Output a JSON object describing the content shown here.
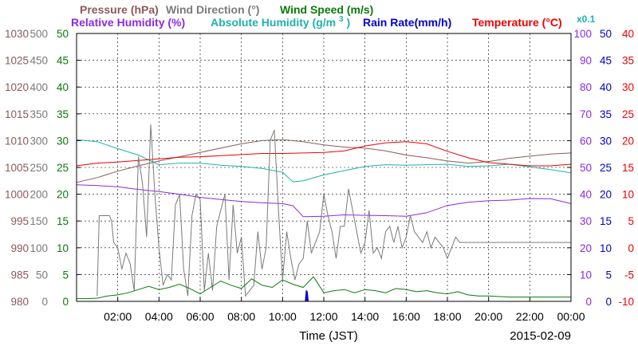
{
  "chart_data": {
    "type": "line",
    "legend": {
      "row1": [
        {
          "text": "Pressure (hPa)",
          "color": "#8b5a5a"
        },
        {
          "text": "Wind Direction (°)",
          "color": "#7a7a7a"
        },
        {
          "text": "Wind Speed (m/s)",
          "color": "#0a7a0a"
        }
      ],
      "row2": [
        {
          "text": "Relative Humidity (%)",
          "color": "#8a2be2"
        },
        {
          "text": "Absolute Humidity (g/m",
          "sup": "3",
          "tail": ")",
          "color": "#20b2aa"
        },
        {
          "text": "Rain Rate(mm/h)",
          "color": "#0000cc"
        },
        {
          "text": "Temperature (°C)",
          "color": "#ee0000"
        },
        {
          "text": "x0.1",
          "color": "#20b2aa"
        }
      ]
    },
    "xlabel": "Time (JST)",
    "date": "2015-02-09",
    "x_ticks": [
      "02:00",
      "04:00",
      "06:00",
      "08:00",
      "10:00",
      "12:00",
      "14:00",
      "16:00",
      "18:00",
      "20:00",
      "22:00",
      "00:00"
    ],
    "axes": {
      "pressure": {
        "color": "#8b5a5a",
        "ticks": [
          "980",
          "985",
          "990",
          "995",
          "1000",
          "1005",
          "1010",
          "1015",
          "1020",
          "1025",
          "1030"
        ]
      },
      "wind_dir": {
        "color": "#7a7a7a",
        "ticks": [
          "0",
          "50",
          "100",
          "150",
          "200",
          "250",
          "300",
          "350",
          "400",
          "450",
          "500"
        ]
      },
      "wind_speed": {
        "color": "#0a7a0a",
        "ticks": [
          "0",
          "5",
          "10",
          "15",
          "20",
          "25",
          "30",
          "35",
          "40",
          "45",
          "50"
        ]
      },
      "humidity": {
        "color": "#8a2be2",
        "ticks": [
          "0",
          "10",
          "20",
          "30",
          "40",
          "50",
          "60",
          "70",
          "80",
          "90",
          "100"
        ]
      },
      "rain_rate": {
        "color": "#0000cc",
        "ticks": [
          "0",
          "5",
          "10",
          "15",
          "20",
          "25",
          "30",
          "35",
          "40",
          "45",
          "50"
        ]
      },
      "temperature": {
        "color": "#ee0000",
        "ticks": [
          "-10",
          "-5",
          "0",
          "5",
          "10",
          "15",
          "20",
          "25",
          "30",
          "35",
          "40"
        ]
      }
    },
    "series": [
      {
        "name": "Pressure (hPa)",
        "axis": "pressure",
        "color": "#8b5a5a",
        "x": [
          0,
          1,
          2,
          3,
          4,
          5,
          6,
          7,
          8,
          9,
          10,
          11,
          12,
          13,
          14,
          15,
          16,
          17,
          18,
          19,
          20,
          21,
          22,
          23,
          24
        ],
        "y": [
          1002.2,
          1003.1,
          1004.3,
          1005.3,
          1006.2,
          1007.0,
          1007.8,
          1008.6,
          1009.4,
          1010.0,
          1010.2,
          1009.8,
          1009.2,
          1008.8,
          1008.6,
          1008.1,
          1007.3,
          1006.8,
          1006.2,
          1005.8,
          1006.1,
          1006.7,
          1007.1,
          1007.5,
          1007.7
        ]
      },
      {
        "name": "Relative Humidity (%)",
        "axis": "humidity",
        "color": "#8a2be2",
        "x": [
          0,
          1,
          2,
          3,
          4,
          5,
          6,
          7,
          8,
          9,
          10,
          10.5,
          11,
          12,
          13,
          14,
          15,
          16,
          17,
          18,
          19,
          20,
          21,
          22,
          23,
          24
        ],
        "y": [
          43.5,
          43.2,
          42.8,
          41.8,
          41.0,
          40.0,
          38.8,
          38.0,
          37.3,
          36.8,
          36.5,
          35.7,
          31.6,
          31.8,
          32.3,
          32.1,
          32.0,
          31.8,
          33.1,
          35.8,
          37.0,
          37.6,
          37.8,
          38.4,
          38.3,
          36.5
        ]
      },
      {
        "name": "Absolute Humidity (g/m³) x0.1",
        "axis": "wind_speed",
        "color": "#20b2aa",
        "x": [
          0,
          1,
          2,
          3,
          4,
          5,
          6,
          7,
          8,
          9,
          10,
          10.5,
          11,
          12,
          13,
          14,
          15,
          16,
          17,
          18,
          19,
          20,
          21,
          22,
          23,
          24
        ],
        "y": [
          30.2,
          29.8,
          28.5,
          27.3,
          25.5,
          25.8,
          25.8,
          25.4,
          25.2,
          24.8,
          24.1,
          22.3,
          22.5,
          23.6,
          24.4,
          25.2,
          25.5,
          25.4,
          25.5,
          25.6,
          25.2,
          25.3,
          25.6,
          25.1,
          24.6,
          24.0
        ]
      },
      {
        "name": "Temperature (°C)",
        "axis": "temperature",
        "color": "#ee0000",
        "x": [
          0,
          1,
          2,
          3,
          4,
          5,
          6,
          7,
          8,
          9,
          10,
          11,
          12,
          13,
          14,
          15,
          16,
          17,
          18,
          19,
          20,
          21,
          22,
          23,
          24
        ],
        "y": [
          15.3,
          15.8,
          16.0,
          16.3,
          16.6,
          16.9,
          17.0,
          17.2,
          17.4,
          17.6,
          17.6,
          17.7,
          17.8,
          18.1,
          19.0,
          19.6,
          19.8,
          19.4,
          18.0,
          16.8,
          15.9,
          15.6,
          15.3,
          15.3,
          15.6
        ]
      },
      {
        "name": "Wind Direction (°)",
        "axis": "wind_dir",
        "color": "#7a7a7a",
        "x": [
          1.0,
          1.1,
          1.6,
          1.7,
          1.8,
          2.0,
          2.2,
          2.4,
          2.6,
          2.8,
          3.0,
          3.2,
          3.4,
          3.6,
          3.8,
          4.0,
          4.2,
          4.4,
          4.6,
          4.8,
          5.0,
          5.2,
          5.4,
          5.6,
          5.8,
          6.0,
          6.2,
          6.4,
          6.6,
          6.8,
          7.0,
          7.2,
          7.4,
          7.6,
          7.8,
          8.0,
          8.2,
          8.4,
          8.6,
          8.8,
          9.0,
          9.2,
          9.4,
          9.6,
          9.8,
          10.0,
          10.2,
          10.4,
          10.6,
          10.8,
          11.0,
          11.2,
          11.4,
          11.6,
          11.8,
          12.0,
          12.2,
          12.4,
          12.6,
          12.8,
          13.0,
          13.2,
          13.4,
          13.6,
          13.8,
          14.0,
          14.2,
          14.4,
          14.6,
          14.8,
          15.0,
          15.2,
          15.4,
          15.6,
          15.8,
          16.0,
          16.2,
          16.4,
          16.6,
          16.8,
          17.0,
          17.2,
          17.4,
          17.6,
          17.8,
          18.0,
          18.2,
          18.4,
          18.6,
          19.0,
          20.0,
          21.0,
          22.0,
          23.0,
          24.0
        ],
        "y": [
          10,
          160,
          160,
          150,
          110,
          100,
          60,
          90,
          70,
          20,
          270,
          220,
          120,
          330,
          200,
          100,
          30,
          50,
          40,
          180,
          200,
          60,
          10,
          160,
          200,
          190,
          20,
          90,
          20,
          140,
          170,
          200,
          40,
          180,
          90,
          120,
          10,
          20,
          30,
          130,
          60,
          100,
          300,
          320,
          170,
          40,
          130,
          80,
          40,
          70,
          80,
          150,
          90,
          110,
          130,
          200,
          160,
          130,
          80,
          140,
          140,
          210,
          170,
          130,
          90,
          110,
          170,
          90,
          100,
          80,
          130,
          140,
          110,
          140,
          100,
          120,
          160,
          130,
          120,
          110,
          130,
          100,
          120,
          110,
          100,
          80,
          100,
          120,
          110,
          110,
          110,
          110,
          110,
          110,
          110
        ]
      },
      {
        "name": "Wind Speed (m/s)",
        "axis": "wind_speed",
        "color": "#0a7a0a",
        "x": [
          0,
          0.5,
          1.0,
          1.5,
          2.0,
          2.5,
          3.0,
          3.5,
          4.0,
          4.5,
          5.0,
          5.5,
          6.0,
          6.5,
          7.0,
          7.5,
          8.0,
          8.5,
          9.0,
          9.5,
          10.0,
          10.5,
          11.0,
          11.5,
          12.0,
          12.5,
          13.0,
          13.5,
          14.0,
          14.5,
          15.0,
          15.5,
          16.0,
          16.5,
          17.0,
          17.5,
          18.0,
          18.5,
          19.0,
          19.5,
          20.0,
          21.0,
          22.0,
          23.0,
          24.0
        ],
        "y": [
          0.5,
          0.5,
          0.6,
          1.0,
          1.2,
          1.6,
          2.2,
          2.8,
          2.2,
          2.6,
          3.2,
          2.4,
          1.4,
          2.6,
          3.8,
          3.0,
          2.4,
          4.2,
          3.0,
          2.6,
          4.0,
          3.2,
          2.6,
          4.6,
          1.6,
          2.0,
          2.2,
          1.6,
          2.2,
          2.0,
          1.6,
          2.4,
          2.2,
          1.8,
          2.0,
          1.6,
          1.4,
          1.8,
          1.2,
          1.0,
          1.0,
          0.8,
          0.8,
          0.8,
          0.8
        ]
      },
      {
        "name": "Rain Rate(mm/h)",
        "axis": "rain_rate",
        "color": "#0000cc",
        "x": [
          11.1,
          11.15,
          11.2,
          11.25
        ],
        "y": [
          0,
          2.0,
          1.8,
          0
        ]
      }
    ]
  }
}
